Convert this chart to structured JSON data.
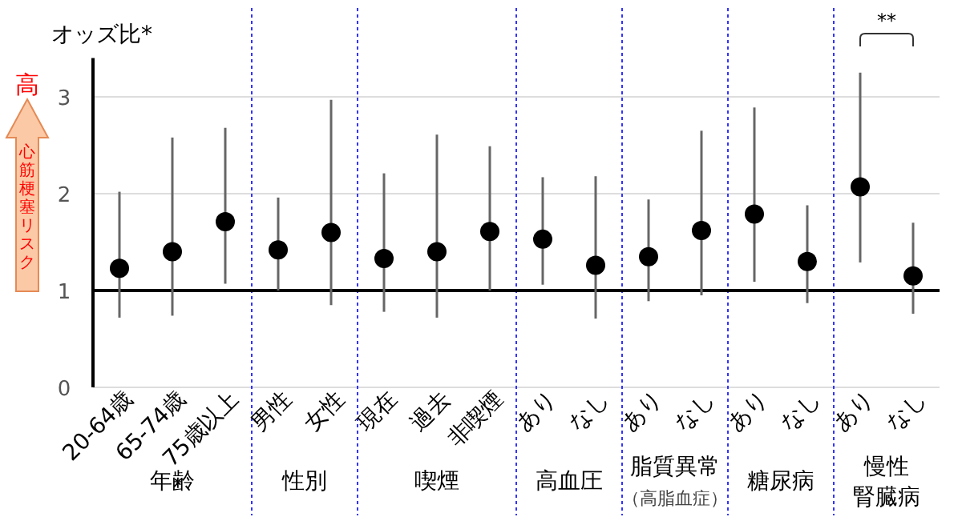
{
  "chart_data": {
    "type": "scatter",
    "ylabel": "オッズ比*",
    "categories": [
      "20-64歳",
      "65-74歳",
      "75歳以上",
      "男性",
      "女性",
      "現在",
      "過去",
      "非喫煙",
      "あり",
      "なし",
      "あり",
      "なし",
      "あり",
      "なし",
      "あり",
      "なし"
    ],
    "series": [
      {
        "color": "#000000",
        "values": [
          1.23,
          1.4,
          1.71,
          1.42,
          1.6,
          1.33,
          1.4,
          1.61,
          1.53,
          1.26,
          1.35,
          1.62,
          1.79,
          1.3,
          2.07,
          1.15
        ],
        "errors": [
          [
            0.72,
            2.02
          ],
          [
            0.74,
            2.58
          ],
          [
            1.07,
            2.68
          ],
          [
            1.0,
            1.96
          ],
          [
            0.85,
            2.97
          ],
          [
            0.78,
            2.21
          ],
          [
            0.72,
            2.61
          ],
          [
            1.0,
            2.49
          ],
          [
            1.06,
            2.17
          ],
          [
            0.71,
            2.18
          ],
          [
            0.89,
            1.94
          ],
          [
            0.95,
            2.65
          ],
          [
            1.09,
            2.89
          ],
          [
            0.87,
            1.88
          ],
          [
            1.29,
            3.25
          ],
          [
            0.76,
            1.7
          ]
        ]
      }
    ],
    "ylim": [
      0,
      3.4
    ],
    "yticks": [
      0,
      1,
      2,
      3
    ],
    "grid": "y",
    "marker": "circle",
    "ref_lines": [
      {
        "axis": "y",
        "value": 1,
        "color": "#000000"
      }
    ],
    "annotations": [
      "高",
      "心筋梗塞リスク",
      "**",
      "年齢",
      "性別",
      "喫煙",
      "高血圧",
      "脂質異常",
      "（高脂血症）",
      "糖尿病",
      "慢性腎臓病"
    ]
  }
}
